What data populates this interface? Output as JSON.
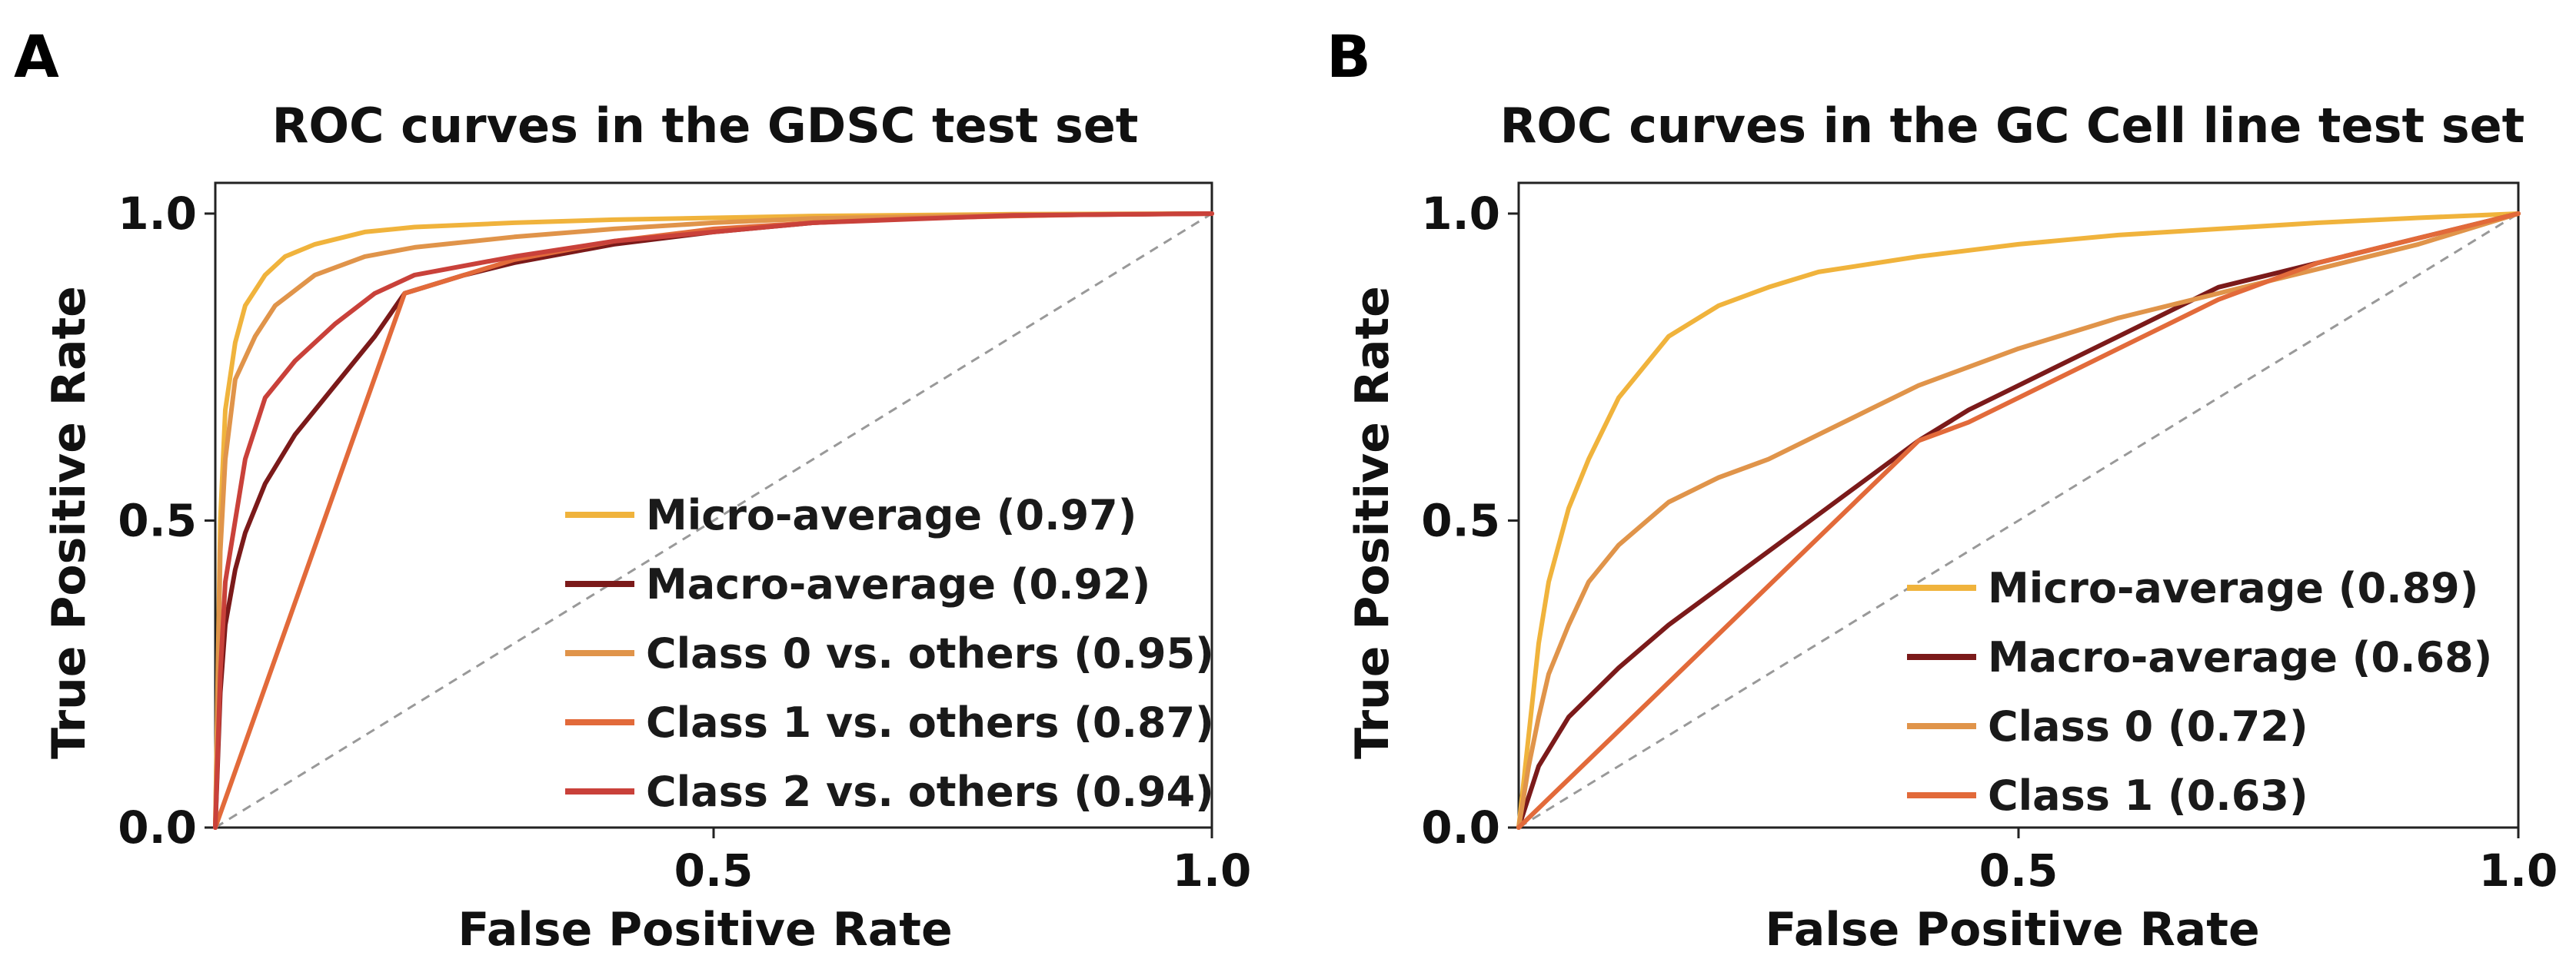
{
  "panels": {
    "a": {
      "letter": "A"
    },
    "b": {
      "letter": "B"
    }
  },
  "chart_data": [
    {
      "type": "line",
      "title": "ROC curves in the GDSC test set",
      "xlabel": "False Positive Rate",
      "ylabel": "True Positive Rate",
      "xlim": [
        0,
        1
      ],
      "ylim": [
        0,
        1.05
      ],
      "xticks": [
        {
          "value": 0.5,
          "label": "0.5"
        },
        {
          "value": 1.0,
          "label": "1.0"
        }
      ],
      "yticks": [
        {
          "value": 0.0,
          "label": "0.0"
        },
        {
          "value": 0.5,
          "label": "0.5"
        },
        {
          "value": 1.0,
          "label": "1.0"
        }
      ],
      "grid": false,
      "legend_position": "bottom-right",
      "chance_line": {
        "color": "#999999",
        "style": "dashed"
      },
      "series": [
        {
          "name": "Micro-average (0.97)",
          "color": "#f0b33c",
          "x": [
            0,
            0.005,
            0.01,
            0.02,
            0.03,
            0.05,
            0.07,
            0.1,
            0.15,
            0.2,
            0.3,
            0.4,
            0.5,
            0.6,
            0.8,
            1.0
          ],
          "y": [
            0,
            0.5,
            0.68,
            0.79,
            0.85,
            0.9,
            0.93,
            0.95,
            0.97,
            0.978,
            0.985,
            0.99,
            0.993,
            0.996,
            0.999,
            1.0
          ]
        },
        {
          "name": "Macro-average (0.92)",
          "color": "#7b1a1a",
          "x": [
            0,
            0.005,
            0.01,
            0.02,
            0.03,
            0.05,
            0.08,
            0.12,
            0.16,
            0.19,
            0.25,
            0.3,
            0.4,
            0.5,
            0.6,
            0.7,
            0.85,
            1.0
          ],
          "y": [
            0,
            0.22,
            0.33,
            0.42,
            0.48,
            0.56,
            0.64,
            0.72,
            0.8,
            0.87,
            0.9,
            0.92,
            0.95,
            0.97,
            0.985,
            0.993,
            0.998,
            1.0
          ]
        },
        {
          "name": "Class 0 vs. others (0.95)",
          "color": "#e0944a",
          "x": [
            0,
            0.005,
            0.01,
            0.02,
            0.04,
            0.06,
            0.1,
            0.15,
            0.2,
            0.3,
            0.4,
            0.5,
            0.6,
            0.8,
            1.0
          ],
          "y": [
            0,
            0.45,
            0.6,
            0.73,
            0.8,
            0.85,
            0.9,
            0.93,
            0.945,
            0.962,
            0.975,
            0.985,
            0.992,
            0.998,
            1.0
          ]
        },
        {
          "name": "Class 1 vs. others (0.87)",
          "color": "#e26a3a",
          "x": [
            0,
            0.19,
            0.25,
            0.3,
            0.35,
            0.4,
            0.5,
            0.6,
            0.7,
            0.8,
            0.9,
            1.0
          ],
          "y": [
            0,
            0.87,
            0.9,
            0.925,
            0.94,
            0.955,
            0.975,
            0.985,
            0.992,
            0.996,
            0.999,
            1.0
          ]
        },
        {
          "name": "Class 2 vs. others (0.94)",
          "color": "#c9413a",
          "x": [
            0,
            0.005,
            0.01,
            0.02,
            0.03,
            0.05,
            0.08,
            0.12,
            0.16,
            0.2,
            0.3,
            0.4,
            0.5,
            0.6,
            0.8,
            1.0
          ],
          "y": [
            0,
            0.25,
            0.4,
            0.5,
            0.6,
            0.7,
            0.76,
            0.82,
            0.87,
            0.9,
            0.93,
            0.955,
            0.97,
            0.985,
            0.997,
            1.0
          ]
        }
      ]
    },
    {
      "type": "line",
      "title": "ROC curves in the GC Cell line test set",
      "xlabel": "False Positive Rate",
      "ylabel": "True Positive Rate",
      "xlim": [
        0,
        1
      ],
      "ylim": [
        0,
        1.05
      ],
      "xticks": [
        {
          "value": 0.5,
          "label": "0.5"
        },
        {
          "value": 1.0,
          "label": "1.0"
        }
      ],
      "yticks": [
        {
          "value": 0.0,
          "label": "0.0"
        },
        {
          "value": 0.5,
          "label": "0.5"
        },
        {
          "value": 1.0,
          "label": "1.0"
        }
      ],
      "grid": false,
      "legend_position": "bottom-right",
      "chance_line": {
        "color": "#999999",
        "style": "dashed"
      },
      "series": [
        {
          "name": "Micro-average (0.89)",
          "color": "#f0b33c",
          "x": [
            0,
            0.01,
            0.02,
            0.03,
            0.05,
            0.07,
            0.1,
            0.15,
            0.2,
            0.25,
            0.3,
            0.4,
            0.5,
            0.6,
            0.7,
            0.8,
            0.9,
            1.0
          ],
          "y": [
            0,
            0.15,
            0.3,
            0.4,
            0.52,
            0.6,
            0.7,
            0.8,
            0.85,
            0.88,
            0.905,
            0.93,
            0.95,
            0.965,
            0.975,
            0.985,
            0.993,
            1.0
          ]
        },
        {
          "name": "Macro-average (0.68)",
          "color": "#7b1a1a",
          "x": [
            0,
            0.02,
            0.05,
            0.1,
            0.15,
            0.2,
            0.25,
            0.3,
            0.35,
            0.4,
            0.45,
            0.5,
            0.55,
            0.6,
            0.65,
            0.7,
            0.75,
            0.8,
            0.9,
            1.0
          ],
          "y": [
            0,
            0.1,
            0.18,
            0.26,
            0.33,
            0.39,
            0.45,
            0.51,
            0.57,
            0.63,
            0.68,
            0.72,
            0.76,
            0.8,
            0.84,
            0.88,
            0.9,
            0.92,
            0.96,
            1.0
          ]
        },
        {
          "name": "Class 0 (0.72)",
          "color": "#e0944a",
          "x": [
            0,
            0.01,
            0.02,
            0.03,
            0.05,
            0.07,
            0.1,
            0.15,
            0.2,
            0.25,
            0.3,
            0.35,
            0.4,
            0.45,
            0.5,
            0.6,
            0.7,
            0.8,
            0.9,
            1.0
          ],
          "y": [
            0,
            0.1,
            0.18,
            0.25,
            0.33,
            0.4,
            0.46,
            0.53,
            0.57,
            0.6,
            0.64,
            0.68,
            0.72,
            0.75,
            0.78,
            0.83,
            0.87,
            0.91,
            0.95,
            1.0
          ]
        },
        {
          "name": "Class 1 (0.63)",
          "color": "#e26a3a",
          "x": [
            0,
            0.4,
            0.45,
            0.5,
            0.55,
            0.6,
            0.65,
            0.7,
            0.75,
            0.8,
            0.9,
            1.0
          ],
          "y": [
            0,
            0.63,
            0.66,
            0.7,
            0.74,
            0.78,
            0.82,
            0.86,
            0.89,
            0.92,
            0.96,
            1.0
          ]
        }
      ]
    }
  ]
}
